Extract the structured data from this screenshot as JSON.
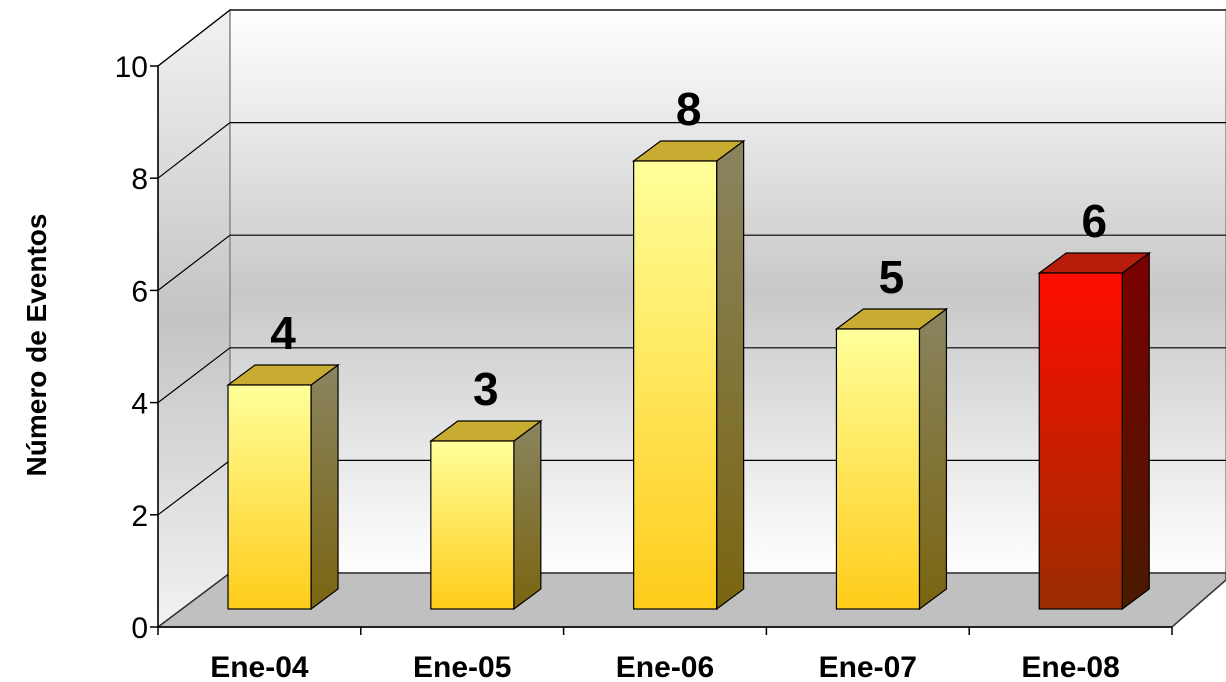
{
  "chart_data": {
    "type": "bar",
    "categories": [
      "Ene-04",
      "Ene-05",
      "Ene-06",
      "Ene-07",
      "Ene-08"
    ],
    "values": [
      4,
      3,
      8,
      5,
      6
    ],
    "data_labels": [
      "4",
      "3",
      "8",
      "5",
      "6"
    ],
    "ylabel": "Número de Eventos",
    "xlabel": "",
    "ylim": [
      0,
      10
    ],
    "yticks": [
      "0",
      "2",
      "4",
      "6",
      "8",
      "10"
    ],
    "grid": true,
    "style": "3d",
    "colors": {
      "default_bar": "#ffe36b",
      "highlight_bar": "#ff1200",
      "highlight_index": 4
    }
  }
}
